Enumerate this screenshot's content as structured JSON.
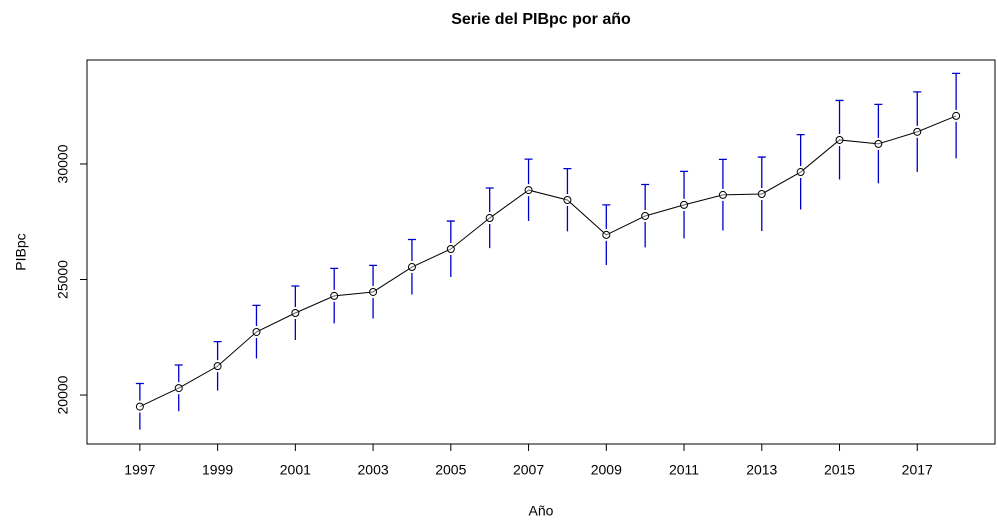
{
  "chart_data": {
    "type": "line",
    "title": "Serie del PIBpc por año",
    "x_label": "Año",
    "y_label": "PIBpc",
    "x": [
      1997,
      1998,
      1999,
      2000,
      2001,
      2002,
      2003,
      2004,
      2005,
      2006,
      2007,
      2008,
      2009,
      2010,
      2011,
      2012,
      2013,
      2014,
      2015,
      2016,
      2017,
      2018
    ],
    "series": [
      {
        "color": "#000000",
        "error_color": "#0000cd",
        "values": [
          19500,
          20300,
          21250,
          22730,
          23550,
          24290,
          24460,
          25540,
          26320,
          27660,
          28870,
          28440,
          26930,
          27750,
          28230,
          28660,
          28700,
          29650,
          31040,
          30870,
          31390,
          32080
        ],
        "errors": [
          1000,
          1000,
          1060,
          1150,
          1170,
          1190,
          1150,
          1190,
          1210,
          1300,
          1340,
          1360,
          1300,
          1360,
          1450,
          1540,
          1600,
          1620,
          1710,
          1710,
          1730,
          1840
        ]
      }
    ],
    "xlim": [
      1995.64,
      2019.0
    ],
    "ylim": [
      17880,
      34500
    ],
    "xticks": [
      1997,
      1999,
      2001,
      2003,
      2005,
      2007,
      2009,
      2011,
      2013,
      2015,
      2017
    ],
    "yticks": [
      20000,
      25000,
      30000
    ]
  }
}
